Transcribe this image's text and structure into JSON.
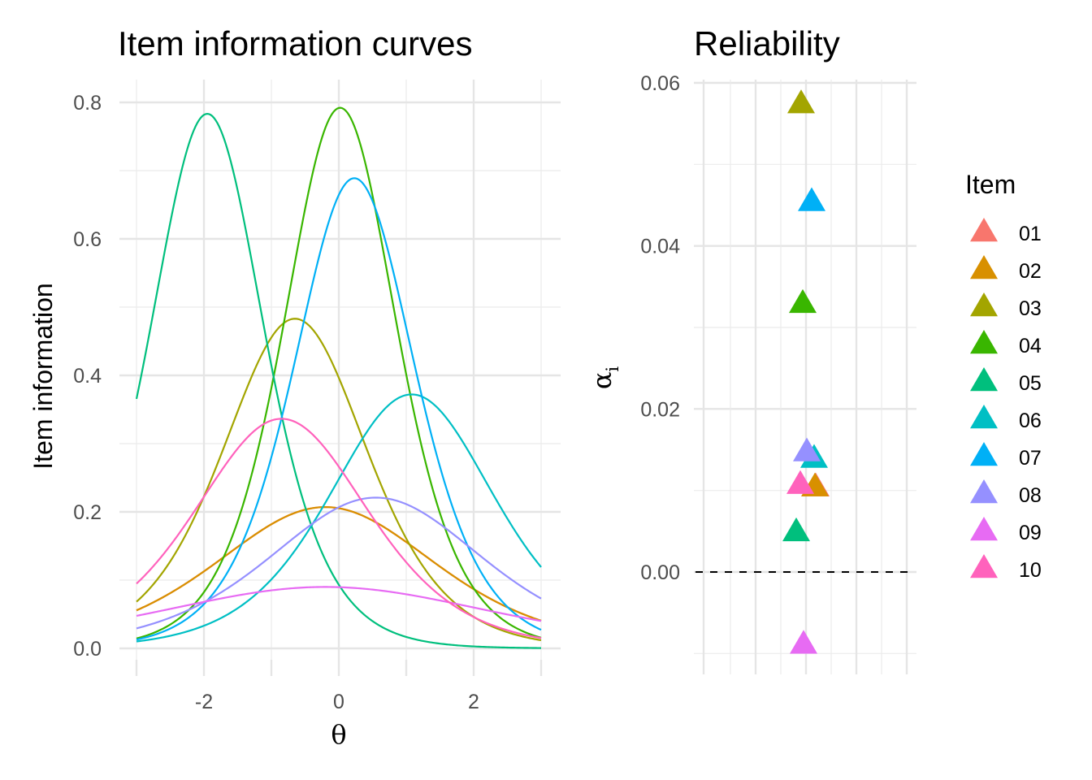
{
  "chart_data": [
    {
      "type": "line",
      "title": "Item information curves",
      "xlabel": "θ",
      "ylabel": "Item information",
      "xlim": [
        -3,
        3
      ],
      "ylim": [
        0,
        0.8
      ],
      "x_ticks": [
        "-2",
        "0",
        "2"
      ],
      "y_ticks": [
        "0.0",
        "0.2",
        "0.4",
        "0.6",
        "0.8"
      ],
      "grid": true,
      "series": [
        {
          "name": "01",
          "color": "#F8766D",
          "a": 0.91,
          "b": -0.2
        },
        {
          "name": "02",
          "color": "#D89000",
          "a": 0.91,
          "b": -0.2
        },
        {
          "name": "03",
          "color": "#A3A500",
          "a": 1.39,
          "b": -0.65
        },
        {
          "name": "04",
          "color": "#39B600",
          "a": 1.78,
          "b": 0.02
        },
        {
          "name": "05",
          "color": "#00BF7D",
          "a": 1.77,
          "b": -1.95
        },
        {
          "name": "06",
          "color": "#00BFC4",
          "a": 1.22,
          "b": 1.08
        },
        {
          "name": "07",
          "color": "#00B0F6",
          "a": 1.66,
          "b": 0.23
        },
        {
          "name": "08",
          "color": "#9590FF",
          "a": 0.94,
          "b": 0.55
        },
        {
          "name": "09",
          "color": "#E76BF3",
          "a": 0.6,
          "b": -0.2
        },
        {
          "name": "10",
          "color": "#FF62BC",
          "a": 1.16,
          "b": -0.85
        }
      ]
    },
    {
      "type": "scatter",
      "title": "Reliability",
      "ylabel": "α",
      "ylabel_sub": "i",
      "ylim": [
        -0.01,
        0.06
      ],
      "y_ticks": [
        "0.00",
        "0.02",
        "0.04",
        "0.06"
      ],
      "reference_line": 0,
      "grid": true,
      "points": [
        {
          "item": "01",
          "value": 0.0105,
          "color": "#F8766D"
        },
        {
          "item": "02",
          "value": 0.0105,
          "color": "#D89000"
        },
        {
          "item": "03",
          "value": 0.0575,
          "color": "#A3A500"
        },
        {
          "item": "04",
          "value": 0.033,
          "color": "#39B600"
        },
        {
          "item": "05",
          "value": 0.005,
          "color": "#00BF7D"
        },
        {
          "item": "06",
          "value": 0.014,
          "color": "#00BFC4"
        },
        {
          "item": "07",
          "value": 0.0455,
          "color": "#00B0F6"
        },
        {
          "item": "08",
          "value": 0.0148,
          "color": "#9590FF"
        },
        {
          "item": "09",
          "value": -0.0088,
          "color": "#E76BF3"
        },
        {
          "item": "10",
          "value": 0.0108,
          "color": "#FF62BC"
        }
      ]
    }
  ],
  "legend": {
    "title": "Item",
    "items": [
      "01",
      "02",
      "03",
      "04",
      "05",
      "06",
      "07",
      "08",
      "09",
      "10"
    ]
  }
}
